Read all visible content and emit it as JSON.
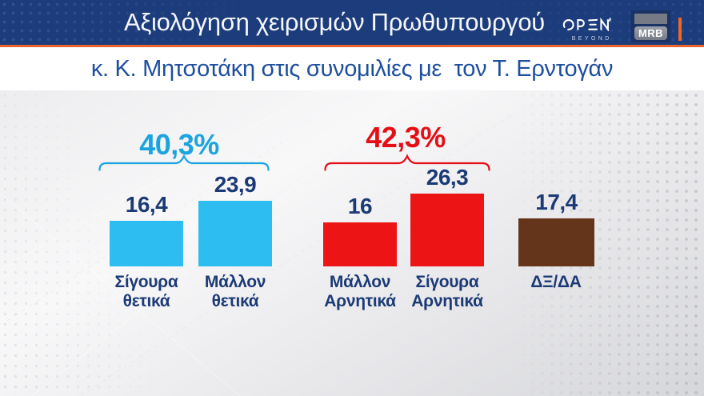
{
  "header": {
    "title": "Αξιολόγηση χειρισμών Πρωθυπουργού",
    "channel_logo": {
      "name": "OPEN",
      "tagline": "BEYOND"
    },
    "agency_logo": {
      "text": "MRB"
    }
  },
  "subtitle": "κ. Κ. Μητσοτάκη στις συνομιλίες με  τον Τ. Ερντογάν",
  "colors": {
    "header_bg": "#1d3c7b",
    "header_text": "#f4f7fb",
    "orange": "#e8642c",
    "orange_tick": "#f0681f",
    "subtitle_text": "#1e4f9f",
    "positive_bar": "#2ebdf0",
    "positive_total": "#1ba4e0",
    "negative_bar": "#ec1414",
    "negative_total": "#e60e16",
    "dk_bar": "#64351b",
    "value_text": "#1c3a75",
    "label_text": "#1c3a75",
    "logo_sub": "#c9d2e2",
    "mrb_bg": "#1a3264",
    "mrb_gray": "#757b86",
    "mrb_plate": "#9ba1ac"
  },
  "chart_data": {
    "type": "bar",
    "title": "Αξιολόγηση χειρισμών Πρωθυπουργού κ. Κ. Μητσοτάκη στις συνομιλίες με τον Τ. Ερντογάν",
    "unit": "%",
    "ylim": [
      0,
      30
    ],
    "grid": false,
    "categories": [
      "Σίγουρα θετικά",
      "Μάλλον θετικά",
      "Μάλλον Αρνητικά",
      "Σίγουρα Αρνητικά",
      "ΔΞ/ΔΑ"
    ],
    "values": [
      16.4,
      23.9,
      16,
      26.3,
      17.4
    ],
    "bars": [
      {
        "category": "Σίγουρα θετικά",
        "label_lines": "Σίγουρα\nθετικά",
        "value": 16.4,
        "display": "16,4",
        "color": "positive_bar"
      },
      {
        "category": "Μάλλον θετικά",
        "label_lines": "Μάλλον\nθετικά",
        "value": 23.9,
        "display": "23,9",
        "color": "positive_bar"
      },
      {
        "category": "Μάλλον Αρνητικά",
        "label_lines": "Μάλλον\nΑρνητικά",
        "value": 16,
        "display": "16",
        "color": "negative_bar"
      },
      {
        "category": "Σίγουρα Αρνητικά",
        "label_lines": "Σίγουρα\nΑρνητικά",
        "value": 26.3,
        "display": "26,3",
        "color": "negative_bar"
      },
      {
        "category": "ΔΞ/ΔΑ",
        "label_lines": "ΔΞ/ΔΑ",
        "value": 17.4,
        "display": "17,4",
        "color": "dk_bar"
      }
    ],
    "groups": [
      {
        "label": "40,3%",
        "sum_of": [
          "Σίγουρα θετικά",
          "Μάλλον θετικά"
        ],
        "color": "positive_total"
      },
      {
        "label": "42,3%",
        "sum_of": [
          "Μάλλον Αρνητικά",
          "Σίγουρα Αρνητικά"
        ],
        "color": "negative_total"
      }
    ]
  }
}
